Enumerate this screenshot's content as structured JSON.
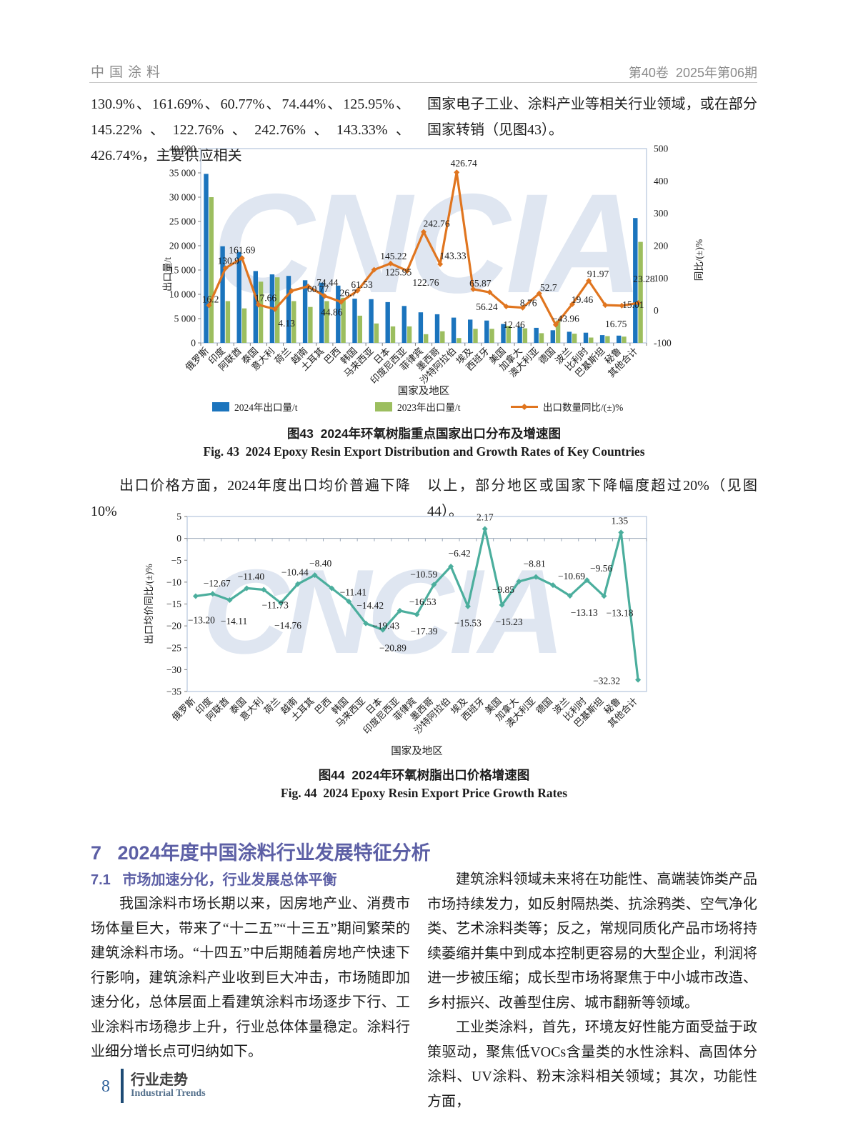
{
  "header": {
    "journal": "中国涂料",
    "volume_issue": "第40卷  2025年第06期"
  },
  "intro": {
    "left": "130.9%、161.69%、60.77%、74.44%、125.95%、145.22%、122.76%、242.76%、143.33%、426.74%，主要供应相关",
    "right": "国家电子工业、涂料产业等相关行业领域，或在部分国家转销（见图43）。"
  },
  "fig43": {
    "caption_zh": "图43  2024年环氧树脂重点国家出口分布及增速图",
    "caption_en": "Fig. 43  2024 Epoxy Resin Export Distribution and Growth Rates of Key Countries"
  },
  "mid_para": {
    "left": "出口价格方面，2024年度出口均价普遍下降10%",
    "right": "以上，部分地区或国家下降幅度超过20%（见图44）。"
  },
  "fig44": {
    "caption_zh": "图44  2024年环氧树脂出口价格增速图",
    "caption_en": "Fig. 44  2024 Epoxy Resin Export Price Growth Rates"
  },
  "section": {
    "h1": "7   2024年度中国涂料行业发展特征分析",
    "h2": "7.1   市场加速分化，行业发展总体平衡",
    "left_para": "我国涂料市场长期以来，因房地产业、消费市场体量巨大，带来了“十二五”“十三五”期间繁荣的建筑涂料市场。“十四五”中后期随着房地产快速下行影响，建筑涂料产业收到巨大冲击，市场随即加速分化，总体层面上看建筑涂料市场逐步下行、工业涂料市场稳步上升，行业总体体量稳定。涂料行业细分增长点可归纳如下。",
    "right_para1": "建筑涂料领域未来将在功能性、高端装饰类产品市场持续发力，如反射隔热类、抗涂鸦类、空气净化类、艺术涂料类等；反之，常规同质化产品市场将持续萎缩并集中到成本控制更容易的大型企业，利润将进一步被压缩；成长型市场将聚焦于中小城市改造、乡村振兴、改善型住房、城市翻新等领域。",
    "right_para2": "工业类涂料，首先，环境友好性能方面受益于政策驱动，聚焦低VOCs含量类的水性涂料、高固体分涂料、UV涂料、粉末涂料相关领域；其次，功能性方面，"
  },
  "footer": {
    "page_number": "8",
    "column_zh": "行业走势",
    "column_en": "Industrial Trends"
  },
  "watermark": "CNCIA",
  "chart_data": [
    {
      "id": "fig43",
      "type": "bar+line",
      "title": "2024年环氧树脂重点国家出口分布及增速图",
      "categories": [
        "俄罗斯",
        "印度",
        "阿联酋",
        "泰国",
        "意大利",
        "荷兰",
        "越南",
        "土耳其",
        "巴西",
        "韩国",
        "马来西亚",
        "日本",
        "印度尼西亚",
        "菲律宾",
        "墨西哥",
        "沙特阿拉伯",
        "埃及",
        "西班牙",
        "美国",
        "加拿大",
        "澳大利亚",
        "德国",
        "波兰",
        "比利时",
        "巴基斯坦",
        "秘鲁",
        "其他合计"
      ],
      "series": [
        {
          "name": "2024年出口量/t",
          "type": "bar",
          "color": "#1b74bd",
          "values": [
            34800,
            19900,
            18700,
            14800,
            14100,
            13800,
            12900,
            12400,
            11800,
            9100,
            9000,
            8400,
            7600,
            6300,
            5900,
            5200,
            4800,
            4600,
            3900,
            3300,
            3100,
            2600,
            2300,
            2100,
            1600,
            1500,
            25700
          ]
        },
        {
          "name": "2023年出口量/t",
          "type": "bar",
          "color": "#9cbe5f",
          "values": [
            30000,
            8600,
            7100,
            12600,
            13500,
            8600,
            7400,
            8600,
            9300,
            5600,
            4000,
            3400,
            3400,
            1800,
            2400,
            1000,
            2900,
            2900,
            3500,
            3000,
            2000,
            4600,
            1900,
            1100,
            1400,
            1300,
            20800
          ]
        },
        {
          "name": "出口数量同比/(±)%",
          "type": "line",
          "axis": "right",
          "color": "#e0751f",
          "values": [
            16.2,
            130.9,
            161.69,
            17.66,
            4.13,
            60.77,
            74.44,
            44.86,
            26.7,
            61.53,
            125.95,
            145.22,
            122.76,
            242.76,
            143.33,
            426.74,
            65.87,
            56.24,
            12.46,
            8.76,
            52.7,
            -43.96,
            19.46,
            91.97,
            16.75,
            15.01,
            23.28
          ],
          "labels": [
            "16.2",
            "130.9",
            "161.69",
            "17.66",
            "4.13",
            "60.77",
            "74.44",
            "44.86",
            "26.7",
            "61.53",
            "125.95",
            "145.22",
            "122.76",
            "242.76",
            "143.33",
            "426.74",
            "65.87",
            "56.24",
            "12.46",
            "8.76",
            "52.7",
            "−43.96",
            "19.46",
            "91.97",
            "16.75",
            "15.01",
            "23.28"
          ]
        }
      ],
      "left_axis": {
        "title": "出口量/t",
        "min": 0,
        "max": 40000,
        "ticks": [
          "40 000",
          "35 000",
          "30 000",
          "25 000",
          "20 000",
          "15 000",
          "10 000",
          "5 000",
          "0"
        ]
      },
      "right_axis": {
        "title": "同比/(±)%",
        "min": -100,
        "max": 500,
        "ticks": [
          "500",
          "400",
          "300",
          "200",
          "100",
          "0",
          "-100"
        ]
      },
      "xlabel": "国家及地区",
      "legend": [
        "2024年出口量/t",
        "2023年出口量/t",
        "出口数量同比/(±)%"
      ],
      "grid": false,
      "note": "bar values in tonnes estimated from figure"
    },
    {
      "id": "fig44",
      "type": "line",
      "title": "2024年环氧树脂出口价格增速图",
      "categories": [
        "俄罗斯",
        "印度",
        "阿联酋",
        "泰国",
        "意大利",
        "荷兰",
        "越南",
        "土耳其",
        "巴西",
        "韩国",
        "马来西亚",
        "日本",
        "印度尼西亚",
        "菲律宾",
        "墨西哥",
        "沙特阿拉伯",
        "埃及",
        "西班牙",
        "美国",
        "加拿大",
        "澳大利亚",
        "德国",
        "波兰",
        "比利时",
        "巴基斯坦",
        "秘鲁",
        "其他合计"
      ],
      "series": [
        {
          "name": "出口均价同比/(±)%",
          "color": "#4bae9d",
          "values": [
            -13.2,
            -12.67,
            -14.11,
            -11.4,
            -11.73,
            -14.76,
            -10.44,
            -8.4,
            -11.41,
            -14.42,
            -19.43,
            -20.89,
            -16.53,
            -17.39,
            -10.59,
            -6.42,
            -15.53,
            2.17,
            -15.23,
            -9.85,
            -8.81,
            -10.69,
            -13.13,
            -9.56,
            -13.18,
            1.35,
            -32.32
          ],
          "labels": [
            "−13.20",
            "−12.67",
            "−14.11",
            "−11.40",
            "−11.73",
            "−14.76",
            "−10.44",
            "−8.40",
            "−11.41",
            "−14.42",
            "−19.43",
            "−20.89",
            "−16.53",
            "−17.39",
            "−10.59",
            "−6.42",
            "−15.53",
            "2.17",
            "−15.23",
            "−9.85",
            "−8.81",
            "−10.69",
            "−13.13",
            "−9.56",
            "−13.18",
            "1.35",
            "−32.32"
          ]
        }
      ],
      "y_axis": {
        "title": "出口均价同比/(±)%",
        "min": -35,
        "max": 5,
        "ticks": [
          "5",
          "0",
          "−5",
          "−10",
          "−15",
          "−20",
          "−25",
          "−30",
          "−35"
        ]
      },
      "xlabel": "国家及地区",
      "grid": false
    }
  ]
}
